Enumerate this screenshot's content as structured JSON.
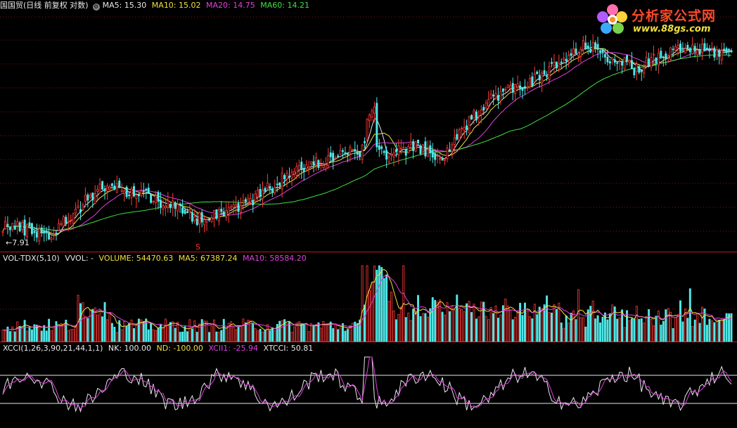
{
  "price_panel": {
    "title": "国国贸(日线 前复权 对数)",
    "ma5": "MA5: 15.30",
    "ma10": "MA10: 15.02",
    "ma20": "MA20: 14.75",
    "ma60": "MA60: 14.21",
    "min_label": "←7.91",
    "signal_mark": "S"
  },
  "volume_panel": {
    "name": "VOL-TDX(5,10)",
    "vvol": "VVOL: -",
    "volume": "VOLUME: 54470.63",
    "ma5": "MA5: 67387.24",
    "ma10": "MA10: 58584.20"
  },
  "indicator_panel": {
    "name": "XCCI(1,26,3,90,21,44,1,1)",
    "nk": "NK: 100.00",
    "nd": "ND: -100.00",
    "xcii1": "XCII1: -25.94",
    "xtcci": "XTCCI: 50.81"
  },
  "logo": {
    "title": "分析家公式网",
    "url": "www.88gs.com"
  },
  "colors": {
    "up": "#ff3a3a",
    "down": "#50e8e8",
    "ma5": "#e8e8e8",
    "ma10": "#f0e040",
    "ma20": "#e040e0",
    "ma60": "#40e040",
    "grid": "#8a1010"
  },
  "chart_data": [
    {
      "type": "candlestick",
      "title": "国国贸(日线 前复权 对数)",
      "scale": "log",
      "price_range_approx": [
        7.6,
        19.0
      ],
      "min_marked": 7.91,
      "anchors": {
        "index": [
          0,
          20,
          40,
          60,
          80,
          100,
          120,
          140,
          150,
          160,
          170,
          180,
          200,
          220,
          240,
          260,
          280,
          300
        ],
        "close": [
          8.4,
          8.1,
          9.7,
          9.4,
          8.6,
          9.1,
          10.3,
          11.0,
          11.2,
          11.0,
          11.3,
          10.7,
          13.6,
          14.6,
          16.6,
          15.2,
          16.4,
          16.1
        ]
      },
      "series": [
        {
          "name": "MA5",
          "value": 15.3
        },
        {
          "name": "MA10",
          "value": 15.02
        },
        {
          "name": "MA20",
          "value": 14.75
        },
        {
          "name": "MA60",
          "value": 14.21
        }
      ]
    },
    {
      "type": "bar",
      "title": "VOL-TDX(5,10)",
      "last_volume": 54470.63,
      "series": [
        {
          "name": "MA5",
          "value": 67387.24
        },
        {
          "name": "MA10",
          "value": 58584.2
        }
      ]
    },
    {
      "type": "line",
      "title": "XCCI(1,26,3,90,21,44,1,1)",
      "reference_lines": {
        "NK": 100.0,
        "ND": -100.0
      },
      "series": [
        {
          "name": "XCII1",
          "value": -25.94
        },
        {
          "name": "XTCCI",
          "value": 50.81
        }
      ]
    }
  ]
}
